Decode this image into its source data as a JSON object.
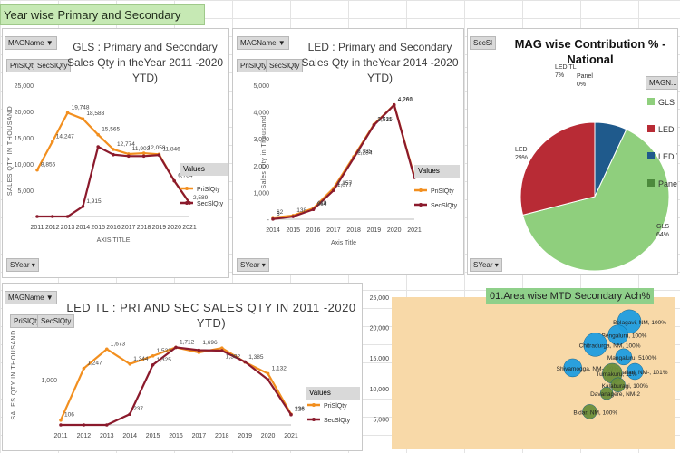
{
  "sheet_title": "Year wise Primary and Secondary Sales in Qty",
  "legend_values_label": "Values",
  "series_names": [
    "PriSlQty",
    "SecSlQty"
  ],
  "controls": {
    "magname": "MAGName",
    "prislqty": "PriSlQty",
    "secslqty": "SecSlQty",
    "syear": "SYear",
    "secsl": "SecSl",
    "magn": "MAGN..."
  },
  "colors": {
    "pri": "#f28f1f",
    "sec": "#8b1a2c",
    "gls": "#8fcf7d",
    "led": "#b82b35",
    "ledtl": "#1f5a8c",
    "panel": "#4c8a3c",
    "bubble": "#1f9ee0",
    "bubble_green": "#6b8f3a",
    "plot_bg": "#f8d9a8"
  },
  "chart_data": [
    {
      "id": "gls",
      "type": "line",
      "title": "GLS : Primary and Secondary Sales Qty in theYear 2011 -2020 YTD)",
      "ylabel": "SALES QTY IN THOUSAND",
      "xlabel": "AXIS TITLE",
      "ylim": [
        0,
        25000
      ],
      "yticks": [
        "25,000",
        "20,000",
        "15,000",
        "10,000",
        "5,000",
        "-"
      ],
      "categories": [
        "2011",
        "2012",
        "2013",
        "2014",
        "2015",
        "2016",
        "2017",
        "2018",
        "2019",
        "2020",
        "2021"
      ],
      "series": [
        {
          "name": "PriSlQty",
          "values": [
            8855,
            14247,
            19748,
            18583,
            15565,
            12774,
            11903,
            12058,
            11846,
            6784,
            2589
          ]
        },
        {
          "name": "SecSlQty",
          "values": [
            0,
            0,
            0,
            1915,
            13274,
            11774,
            11500,
            11500,
            11700,
            6784,
            2589
          ]
        }
      ],
      "labels": [
        "8,855",
        "14,247",
        "19,748",
        "18,583",
        "15,565",
        "12,774",
        "11,903",
        "12,058",
        "11,846",
        "6,784",
        "1,915",
        "2,589"
      ]
    },
    {
      "id": "led",
      "type": "line",
      "title": "LED : Primary and Secondary Sales Qty in theYear 2014 -2020 YTD)",
      "ylabel": "Sales Qty in Thousand",
      "xlabel": "Axis Title",
      "ylim": [
        0,
        5000
      ],
      "yticks": [
        "5,000",
        "4,000",
        "3,000",
        "2,000",
        "1,000",
        "-"
      ],
      "categories": [
        "2014",
        "2015",
        "2016",
        "2017",
        "2018",
        "2019",
        "2020",
        "2021"
      ],
      "series": [
        {
          "name": "PriSlQty",
          "values": [
            62,
            138,
            410,
            1157,
            2335,
            3535,
            4266,
            1600
          ]
        },
        {
          "name": "SecSlQty",
          "values": [
            6,
            100,
            364,
            1077,
            2284,
            3511,
            4262,
            1560
          ]
        }
      ],
      "labels": [
        "62",
        "6",
        "138",
        "410",
        "364",
        "1,157",
        "1,077",
        "2,335",
        "2,284",
        "3,535",
        "3,511",
        "4,266",
        "4,262"
      ]
    },
    {
      "id": "mag",
      "type": "pie",
      "title": "MAG wise Contribution % - National",
      "slices": [
        {
          "name": "GLS",
          "value": 64,
          "label": "GLS 64%"
        },
        {
          "name": "LED",
          "value": 29,
          "label": "LED 29%"
        },
        {
          "name": "LED TL",
          "value": 7,
          "label": "LED TL 7%"
        },
        {
          "name": "Panel",
          "value": 0,
          "label": "Panel 0%"
        }
      ],
      "legend": [
        "GLS",
        "LED",
        "LED TL",
        "Panel"
      ]
    },
    {
      "id": "ledtl",
      "type": "line",
      "title": "LED TL : PRI AND SEC SALES QTY IN 2011 -2020 YTD)",
      "ylabel": "SALES QTY IN THOUSAND",
      "ylim": [
        0,
        2200
      ],
      "yticks": [
        "1,000"
      ],
      "categories": [
        "2011",
        "2012",
        "2013",
        "2014",
        "2015",
        "2016",
        "2017",
        "2018",
        "2019",
        "2020",
        "2021"
      ],
      "series": [
        {
          "name": "PriSlQty",
          "values": [
            106,
            1247,
            1673,
            1344,
            1523,
            1712,
            1600,
            1696,
            1385,
            1132,
            236
          ]
        },
        {
          "name": "SecSlQty",
          "values": [
            0,
            0,
            0,
            237,
            1325,
            1712,
            1650,
            1640,
            1392,
            1000,
            226
          ]
        }
      ],
      "labels": [
        "106",
        "1,247",
        "1,673",
        "1,344",
        "1,523",
        "1,325",
        "1,712",
        "1,696",
        "1,392",
        "1,385",
        "1,132",
        "237",
        "236",
        "226"
      ]
    },
    {
      "id": "area",
      "type": "scatter",
      "title": "01.Area wise MTD Secondary Ach%",
      "ylim": [
        0,
        25000
      ],
      "yticks": [
        "25,000",
        "20,000",
        "15,000",
        "10,000",
        "5,000"
      ],
      "points": [
        {
          "label": "Belagavi, NM, 100%",
          "x": 0.84,
          "y": 21000,
          "r": 13,
          "c": "bubble"
        },
        {
          "label": "Bengaluru, 100%",
          "x": 0.8,
          "y": 18800,
          "r": 11,
          "c": "bubble"
        },
        {
          "label": "Chitradurga, NM, 100%",
          "x": 0.72,
          "y": 17200,
          "r": 13,
          "c": "bubble"
        },
        {
          "label": "Mangaluru, 5100%",
          "x": 0.82,
          "y": 15200,
          "r": 9,
          "c": "bubble"
        },
        {
          "label": "Shivamogga, NM-, 99%",
          "x": 0.64,
          "y": 13400,
          "r": 10,
          "c": "bubble"
        },
        {
          "label": "Ballari, NM-, 101%",
          "x": 0.86,
          "y": 12800,
          "r": 9,
          "c": "bubble"
        },
        {
          "label": "Tumakuru, 11%",
          "x": 0.78,
          "y": 12500,
          "r": 11,
          "c": "bubble_green"
        },
        {
          "label": "Kalaburagi, 100%",
          "x": 0.8,
          "y": 10600,
          "r": 8,
          "c": "bubble_green"
        },
        {
          "label": "Davanagere, NM-2",
          "x": 0.76,
          "y": 9200,
          "r": 7,
          "c": "bubble_green"
        },
        {
          "label": "Bidar, NM, 100%",
          "x": 0.7,
          "y": 6200,
          "r": 8,
          "c": "bubble_green"
        }
      ]
    }
  ]
}
